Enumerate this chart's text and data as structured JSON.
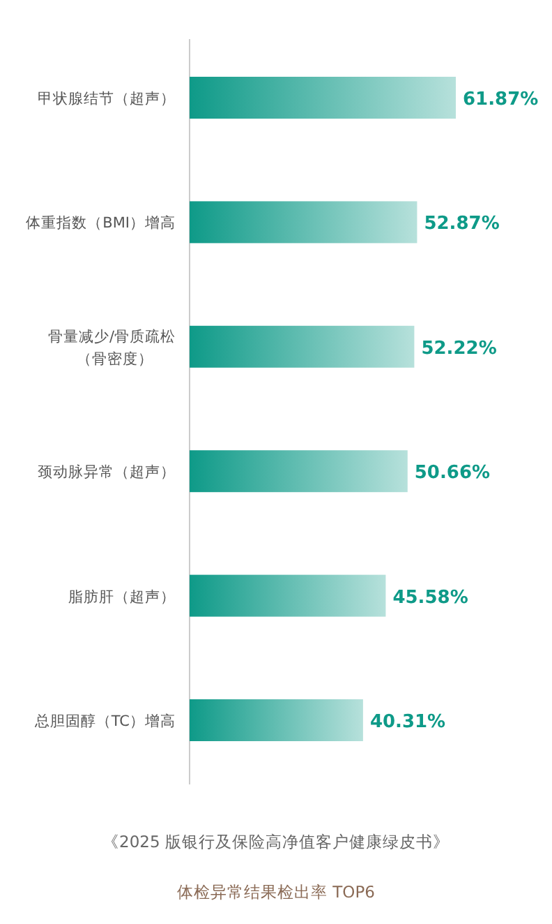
{
  "chart_data": {
    "type": "bar",
    "orientation": "horizontal",
    "title": "体检异常结果检出率 TOP6",
    "annotations": [
      "《2025 版银行及保险高净值客户健康绿皮书》"
    ],
    "categories": [
      "甲状腺结节（超声）",
      "体重指数（BMI）增高",
      "骨量减少/骨质疏松（骨密度）",
      "颈动脉异常（超声）",
      "脂肪肝（超声）",
      "总胆固醇（TC）增高"
    ],
    "values": [
      61.87,
      52.87,
      52.22,
      50.66,
      45.58,
      40.31
    ],
    "value_labels": [
      "61.87%",
      "52.87%",
      "52.22%",
      "50.66%",
      "45.58%",
      "40.31%"
    ],
    "color": "#0e9a88"
  }
}
